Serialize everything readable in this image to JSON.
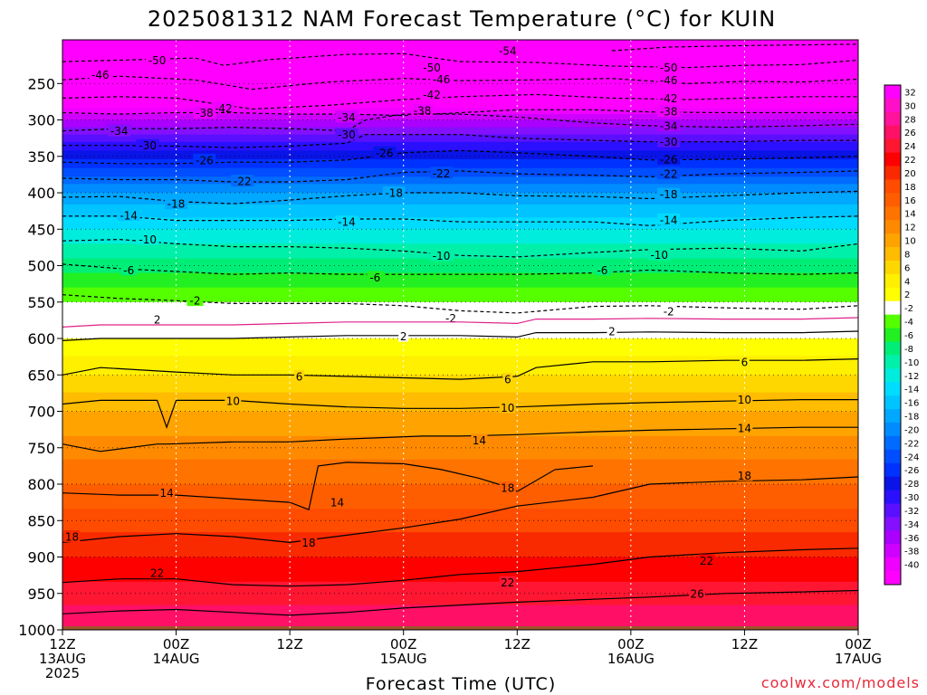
{
  "chart_data": {
    "type": "heatmap",
    "title": "2025081312 NAM Forecast Temperature (°C) for KUIN",
    "xlabel": "Forecast Time (UTC)",
    "ylabel": "",
    "credit": "coolwx.com/models",
    "x_ticks": [
      {
        "hour": 0,
        "line1": "12Z",
        "line2": "13AUG",
        "line3": "2025"
      },
      {
        "hour": 12,
        "line1": "00Z",
        "line2": "14AUG",
        "line3": ""
      },
      {
        "hour": 24,
        "line1": "12Z",
        "line2": "",
        "line3": ""
      },
      {
        "hour": 36,
        "line1": "00Z",
        "line2": "15AUG",
        "line3": ""
      },
      {
        "hour": 48,
        "line1": "12Z",
        "line2": "",
        "line3": ""
      },
      {
        "hour": 60,
        "line1": "00Z",
        "line2": "16AUG",
        "line3": ""
      },
      {
        "hour": 72,
        "line1": "12Z",
        "line2": "",
        "line3": ""
      },
      {
        "hour": 84,
        "line1": "00Z",
        "line2": "17AUG",
        "line3": ""
      }
    ],
    "y_ticks": [
      250,
      300,
      350,
      400,
      450,
      500,
      550,
      600,
      650,
      700,
      750,
      800,
      850,
      900,
      950,
      1000
    ],
    "y_range_hPa": [
      190,
      1000
    ],
    "x_range_hours": [
      0,
      84
    ],
    "grid": true,
    "ground_pressure_hPa": 995,
    "colorbar": {
      "labels": [
        32,
        30,
        28,
        26,
        24,
        22,
        20,
        18,
        16,
        14,
        12,
        10,
        8,
        6,
        4,
        2,
        -2,
        -4,
        -6,
        -8,
        -10,
        -12,
        -14,
        -16,
        -18,
        -20,
        -22,
        -24,
        -26,
        -28,
        -30,
        -32,
        -34,
        -36,
        -38,
        -40
      ],
      "colors": [
        "#ff00ff",
        "#ff10c8",
        "#ff149b",
        "#ff1166",
        "#ff1732",
        "#ff0000",
        "#fa2a00",
        "#ff4c00",
        "#ff5e00",
        "#ff7300",
        "#ff8a00",
        "#ffa300",
        "#ffbc00",
        "#ffd700",
        "#fff000",
        "#ffff00",
        "#ffffff",
        "#55ff00",
        "#22f022",
        "#00ee77",
        "#00f0aa",
        "#00ecdc",
        "#00dcff",
        "#00c4ff",
        "#00a8ff",
        "#008cff",
        "#006cff",
        "#004eff",
        "#0032ff",
        "#0a14e6",
        "#2a10ff",
        "#5a10ff",
        "#8410ff",
        "#aa00ff",
        "#d000ff",
        "#f000ff",
        "#ff00ff"
      ]
    },
    "temperature_profile_hPa_degC": [
      [
        200,
        -54
      ],
      [
        230,
        -50
      ],
      [
        250,
        -46
      ],
      [
        275,
        -42
      ],
      [
        300,
        -36
      ],
      [
        325,
        -31
      ],
      [
        360,
        -25
      ],
      [
        400,
        -18
      ],
      [
        450,
        -12
      ],
      [
        500,
        -7
      ],
      [
        550,
        -2
      ],
      [
        600,
        2
      ],
      [
        650,
        6
      ],
      [
        700,
        10
      ],
      [
        750,
        13
      ],
      [
        800,
        16
      ],
      [
        850,
        19
      ],
      [
        900,
        22
      ],
      [
        950,
        25
      ],
      [
        1000,
        28
      ]
    ],
    "contours": [
      {
        "label": "-54",
        "style": "dashed",
        "hours": [
          58,
          64,
          72,
          84
        ],
        "hpa": [
          205,
          200,
          198,
          196
        ],
        "label_positions": [
          [
            47,
            205
          ]
        ]
      },
      {
        "label": "-50",
        "style": "dashed",
        "hours": [
          0,
          6,
          14,
          17,
          22,
          30,
          36,
          42,
          50,
          58,
          66,
          72,
          78,
          84
        ],
        "hpa": [
          220,
          218,
          215,
          225,
          217,
          210,
          209,
          220,
          221,
          226,
          228,
          225,
          224,
          218
        ],
        "label_positions": [
          [
            10,
            218
          ],
          [
            39,
            228
          ],
          [
            64,
            228
          ]
        ]
      },
      {
        "label": "-46",
        "style": "dashed",
        "hours": [
          0,
          6,
          14,
          20,
          28,
          36,
          42,
          50,
          58,
          66,
          72,
          78,
          84
        ],
        "hpa": [
          245,
          240,
          245,
          258,
          248,
          243,
          246,
          245,
          243,
          250,
          247,
          248,
          244
        ],
        "label_positions": [
          [
            4,
            238
          ],
          [
            40,
            244
          ],
          [
            64,
            245
          ]
        ]
      },
      {
        "label": "-42",
        "style": "dashed",
        "hours": [
          0,
          6,
          12,
          20,
          28,
          36,
          42,
          50,
          58,
          66,
          72,
          78,
          84
        ],
        "hpa": [
          270,
          268,
          270,
          285,
          280,
          272,
          268,
          265,
          270,
          272,
          270,
          268,
          268
        ],
        "label_positions": [
          [
            17,
            284
          ],
          [
            39,
            265
          ],
          [
            64,
            270
          ]
        ]
      },
      {
        "label": "-38",
        "style": "dashed",
        "hours": [
          0,
          6,
          12,
          18,
          24,
          30,
          36,
          42,
          48,
          56,
          62,
          70,
          78,
          84
        ],
        "hpa": [
          290,
          292,
          290,
          290,
          292,
          292,
          294,
          290,
          286,
          286,
          289,
          290,
          290,
          290
        ],
        "label_positions": [
          [
            15,
            290
          ],
          [
            38,
            287
          ],
          [
            64,
            288
          ]
        ]
      },
      {
        "label": "-34",
        "style": "dashed",
        "hours": [
          0,
          6,
          12,
          18,
          24,
          30,
          32,
          36,
          42,
          48,
          56,
          62,
          70,
          78,
          84
        ],
        "hpa": [
          315,
          312,
          312,
          310,
          312,
          315,
          300,
          292,
          292,
          296,
          304,
          308,
          310,
          308,
          306
        ],
        "label_positions": [
          [
            6,
            315
          ],
          [
            30,
            296
          ],
          [
            64,
            308
          ]
        ]
      },
      {
        "label": "-30",
        "style": "dashed",
        "hours": [
          0,
          6,
          12,
          18,
          24,
          30,
          32,
          36,
          42,
          48,
          56,
          62,
          70,
          78,
          84
        ],
        "hpa": [
          335,
          335,
          336,
          338,
          336,
          332,
          320,
          320,
          320,
          325,
          328,
          330,
          330,
          328,
          328
        ],
        "label_positions": [
          [
            9,
            335
          ],
          [
            30,
            320
          ],
          [
            64,
            330
          ]
        ]
      },
      {
        "label": "-26",
        "style": "dashed",
        "hours": [
          0,
          6,
          12,
          18,
          24,
          30,
          36,
          42,
          48,
          56,
          62,
          70,
          78,
          84
        ],
        "hpa": [
          358,
          360,
          360,
          358,
          358,
          355,
          345,
          342,
          345,
          350,
          355,
          354,
          352,
          350
        ],
        "label_positions": [
          [
            15,
            355
          ],
          [
            34,
            345
          ],
          [
            64,
            354
          ]
        ]
      },
      {
        "label": "-22",
        "style": "dashed",
        "hours": [
          0,
          6,
          12,
          18,
          24,
          30,
          36,
          42,
          48,
          56,
          62,
          70,
          78,
          84
        ],
        "hpa": [
          380,
          382,
          382,
          385,
          385,
          382,
          372,
          370,
          374,
          376,
          378,
          374,
          372,
          370
        ],
        "label_positions": [
          [
            19,
            384
          ],
          [
            40,
            373
          ],
          [
            64,
            374
          ]
        ]
      },
      {
        "label": "-18",
        "style": "dashed",
        "hours": [
          0,
          6,
          12,
          18,
          24,
          30,
          36,
          42,
          48,
          56,
          62,
          70,
          78,
          84
        ],
        "hpa": [
          406,
          405,
          412,
          415,
          410,
          404,
          400,
          400,
          404,
          405,
          408,
          404,
          400,
          398
        ],
        "label_positions": [
          [
            12,
            415
          ],
          [
            35,
            400
          ],
          [
            64,
            402
          ]
        ]
      },
      {
        "label": "-14",
        "style": "dashed",
        "hours": [
          0,
          6,
          12,
          18,
          24,
          30,
          36,
          42,
          48,
          56,
          62,
          70,
          78,
          84
        ],
        "hpa": [
          432,
          432,
          438,
          438,
          438,
          436,
          436,
          440,
          440,
          440,
          445,
          438,
          434,
          432
        ],
        "label_positions": [
          [
            7,
            431
          ],
          [
            30,
            440
          ],
          [
            64,
            437
          ]
        ]
      },
      {
        "label": "-10",
        "style": "dashed",
        "hours": [
          0,
          6,
          12,
          18,
          24,
          30,
          36,
          42,
          48,
          56,
          62,
          70,
          78,
          84
        ],
        "hpa": [
          466,
          464,
          470,
          474,
          474,
          476,
          480,
          486,
          488,
          482,
          478,
          476,
          480,
          470
        ],
        "label_positions": [
          [
            9,
            464
          ],
          [
            40,
            486
          ],
          [
            63,
            485
          ]
        ]
      },
      {
        "label": "-6",
        "style": "dashed",
        "hours": [
          0,
          6,
          12,
          18,
          24,
          30,
          36,
          42,
          48,
          56,
          62,
          70,
          78,
          84
        ],
        "hpa": [
          498,
          504,
          508,
          512,
          510,
          512,
          512,
          512,
          512,
          510,
          506,
          510,
          512,
          510
        ],
        "label_positions": [
          [
            7,
            506
          ],
          [
            33,
            516
          ],
          [
            57,
            506
          ]
        ]
      },
      {
        "label": "-2",
        "style": "dashed",
        "hours": [
          0,
          6,
          12,
          18,
          24,
          30,
          36,
          42,
          48,
          56,
          62,
          70,
          78,
          84
        ],
        "hpa": [
          540,
          545,
          548,
          552,
          552,
          552,
          555,
          562,
          565,
          556,
          555,
          558,
          560,
          555
        ],
        "label_positions": [
          [
            14,
            548
          ],
          [
            41,
            572
          ],
          [
            64,
            563
          ]
        ]
      },
      {
        "label": "2",
        "style": "solid",
        "hours": [
          0,
          4,
          12,
          18,
          24,
          30,
          36,
          42,
          48,
          50,
          56,
          62,
          70,
          78,
          84
        ],
        "hpa": [
          603,
          600,
          600,
          600,
          598,
          596,
          596,
          596,
          598,
          592,
          592,
          591,
          592,
          592,
          590
        ],
        "label_positions": [
          [
            10,
            574
          ],
          [
            36,
            597
          ],
          [
            58,
            590
          ]
        ]
      },
      {
        "label": "6",
        "style": "solid",
        "hours": [
          0,
          4,
          12,
          18,
          24,
          30,
          36,
          42,
          48,
          50,
          56,
          62,
          70,
          78,
          84
        ],
        "hpa": [
          650,
          640,
          646,
          650,
          650,
          652,
          654,
          656,
          652,
          640,
          632,
          632,
          630,
          630,
          628
        ],
        "label_positions": [
          [
            25,
            652
          ],
          [
            47,
            656
          ],
          [
            72,
            632
          ]
        ]
      },
      {
        "label": "10",
        "style": "solid",
        "hours": [
          0,
          4,
          10,
          11,
          12,
          18,
          24,
          30,
          36,
          42,
          48,
          56,
          62,
          70,
          78,
          84
        ],
        "hpa": [
          690,
          685,
          685,
          722,
          685,
          685,
          690,
          694,
          696,
          696,
          694,
          690,
          688,
          686,
          684,
          684
        ],
        "label_positions": [
          [
            18,
            686
          ],
          [
            47,
            695
          ],
          [
            72,
            684
          ]
        ]
      },
      {
        "label": "14",
        "style": "solid",
        "hours": [
          0,
          4,
          10,
          11,
          18,
          24,
          30,
          34,
          38,
          42,
          48,
          56,
          62,
          70,
          78,
          84
        ],
        "hpa": [
          745,
          755,
          745,
          745,
          742,
          742,
          738,
          736,
          734,
          734,
          732,
          728,
          726,
          724,
          722,
          722
        ],
        "label_positions": [
          [
            44,
            740
          ],
          [
            72,
            723
          ]
        ]
      },
      {
        "label": "14",
        "style": "solid",
        "hours": [
          0,
          6,
          12,
          18,
          24,
          26,
          27,
          30,
          36,
          40,
          44,
          46,
          48,
          52,
          56
        ],
        "hpa": [
          812,
          815,
          815,
          820,
          825,
          835,
          775,
          770,
          772,
          780,
          792,
          800,
          810,
          780,
          775
        ],
        "label_positions": [
          [
            11,
            812
          ],
          [
            29,
            825
          ]
        ]
      },
      {
        "label": "18",
        "style": "solid",
        "hours": [
          0,
          6,
          12,
          18,
          24,
          30,
          36,
          42,
          48,
          56,
          62,
          70,
          78,
          84
        ],
        "hpa": [
          880,
          872,
          868,
          872,
          880,
          870,
          860,
          848,
          830,
          818,
          800,
          796,
          794,
          790
        ],
        "label_positions": [
          [
            1,
            872
          ],
          [
            26,
            880
          ],
          [
            47,
            805
          ],
          [
            72,
            788
          ]
        ]
      },
      {
        "label": "22",
        "style": "solid",
        "hours": [
          0,
          6,
          12,
          18,
          24,
          30,
          36,
          42,
          48,
          56,
          62,
          70,
          78,
          84
        ],
        "hpa": [
          935,
          930,
          930,
          938,
          940,
          938,
          932,
          924,
          920,
          910,
          900,
          894,
          890,
          888
        ],
        "label_positions": [
          [
            10,
            922
          ],
          [
            47,
            935
          ],
          [
            68,
            905
          ]
        ]
      },
      {
        "label": "26",
        "style": "solid",
        "hours": [
          0,
          6,
          12,
          18,
          24,
          30,
          36,
          42,
          48,
          56,
          62,
          70,
          78,
          84
        ],
        "hpa": [
          978,
          974,
          972,
          976,
          980,
          976,
          970,
          966,
          962,
          958,
          955,
          950,
          948,
          946
        ],
        "label_positions": [
          [
            67,
            950
          ]
        ]
      }
    ]
  }
}
